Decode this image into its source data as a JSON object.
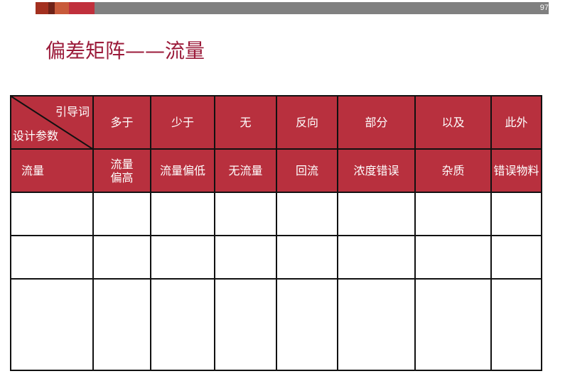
{
  "slide": {
    "page_number": "97",
    "title": "偏差矩阵——流量",
    "colors": {
      "title": "#9b1b3a",
      "header_fill": "#b8303e",
      "bar_gray": "#808080"
    }
  },
  "table": {
    "corner_top": "引导词",
    "corner_bottom": "设计参数",
    "guide_words": [
      "多于",
      "少于",
      "无",
      "反向",
      "部分",
      "以及",
      "此外"
    ],
    "parameter": "流量",
    "deviations": [
      "流量偏高",
      "流量偏低",
      "无流量",
      "回流",
      "浓度错误",
      "杂质",
      "错误物料"
    ],
    "empty_rows": 3
  }
}
